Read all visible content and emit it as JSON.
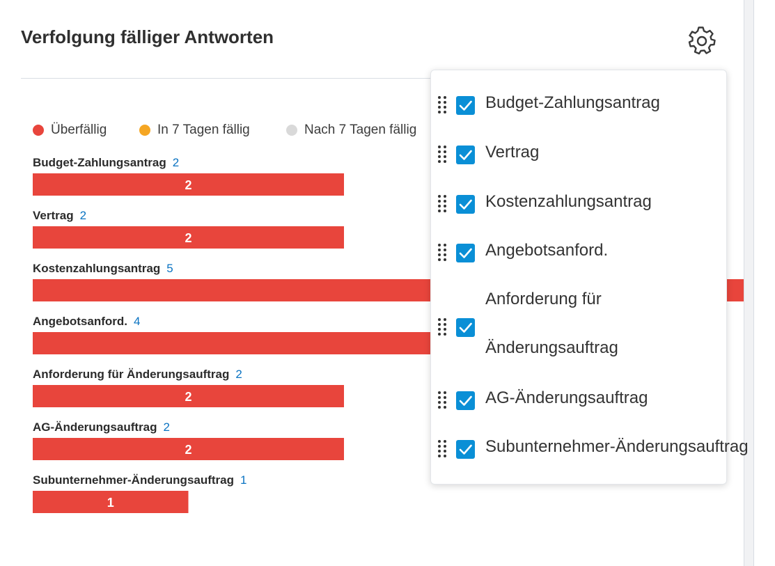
{
  "card": {
    "title": "Verfolgung fälliger Antworten",
    "settings_icon": "gear-icon"
  },
  "legend": [
    {
      "label": "Überfällig",
      "color": "#e8453c"
    },
    {
      "label": "In 7 Tagen fällig",
      "color": "#f5a623"
    },
    {
      "label": "Nach 7 Tagen fällig",
      "color": "#d9d9d9"
    }
  ],
  "chart_data": {
    "type": "bar",
    "orientation": "horizontal",
    "categories": [
      "Budget-Zahlungsantrag",
      "Vertrag",
      "Kostenzahlungsantrag",
      "Angebotsanford.",
      "Anforderung für Änderungsauftrag",
      "AG-Änderungsauftrag",
      "Subunternehmer-Änderungsauftrag"
    ],
    "totals": [
      2,
      2,
      5,
      4,
      2,
      2,
      1
    ],
    "series": [
      {
        "name": "Überfällig",
        "color": "#e8453c",
        "values": [
          2,
          2,
          5,
          4,
          2,
          2,
          1
        ]
      },
      {
        "name": "In 7 Tagen fällig",
        "color": "#f5a623",
        "values": [
          0,
          0,
          0,
          0,
          0,
          0,
          0
        ]
      },
      {
        "name": "Nach 7 Tagen fällig",
        "color": "#d9d9d9",
        "values": [
          0,
          0,
          0,
          0,
          0,
          0,
          0
        ]
      }
    ],
    "legend_position": "top-left",
    "grid": false
  },
  "settings_panel": {
    "items": [
      {
        "label": "Budget-Zahlungsantrag",
        "checked": true
      },
      {
        "label": "Vertrag",
        "checked": true
      },
      {
        "label": "Kostenzahlungsantrag",
        "checked": true
      },
      {
        "label": "Angebotsanford.",
        "checked": true
      },
      {
        "label_line1": "Anforderung für",
        "label_line2": "Änderungsauftrag",
        "checked": true
      },
      {
        "label": "AG-Änderungsauftrag",
        "checked": true
      },
      {
        "label": "Subunternehmer-Änderungsauftrag",
        "checked": true
      }
    ]
  }
}
